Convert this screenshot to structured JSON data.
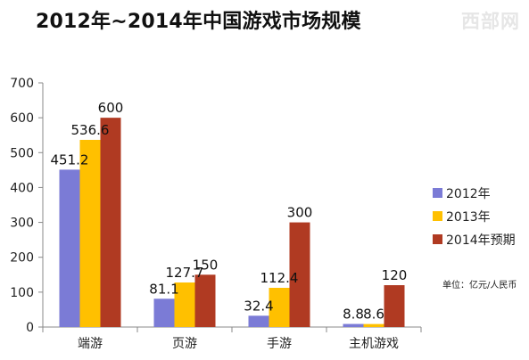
{
  "title": "2012年~2014年中国游戏市场规模",
  "watermark": "西部网",
  "unit_note": "单位：亿元/人民币",
  "chart_data": {
    "type": "bar",
    "categories": [
      "端游",
      "页游",
      "手游",
      "主机游戏"
    ],
    "series": [
      {
        "name": "2012年",
        "color": "#7b7bd6",
        "values": [
          451.2,
          81.1,
          32.4,
          8.8
        ],
        "labels": [
          "451.2",
          "81.1",
          "32.4",
          "8.8"
        ]
      },
      {
        "name": "2013年",
        "color": "#ffc000",
        "values": [
          536.6,
          127.7,
          112.4,
          8.6
        ],
        "labels": [
          "536.6",
          "127.7",
          "112.4",
          "8.6"
        ]
      },
      {
        "name": "2014年预期",
        "color": "#b03a22",
        "values": [
          600,
          150,
          300,
          120
        ],
        "labels": [
          "600",
          "150",
          "300",
          "120"
        ]
      }
    ],
    "yticks": [
      "0",
      "100",
      "200",
      "300",
      "400",
      "500",
      "600",
      "700"
    ],
    "ylim": [
      0,
      700
    ],
    "grid": false,
    "legend_position": "right"
  }
}
